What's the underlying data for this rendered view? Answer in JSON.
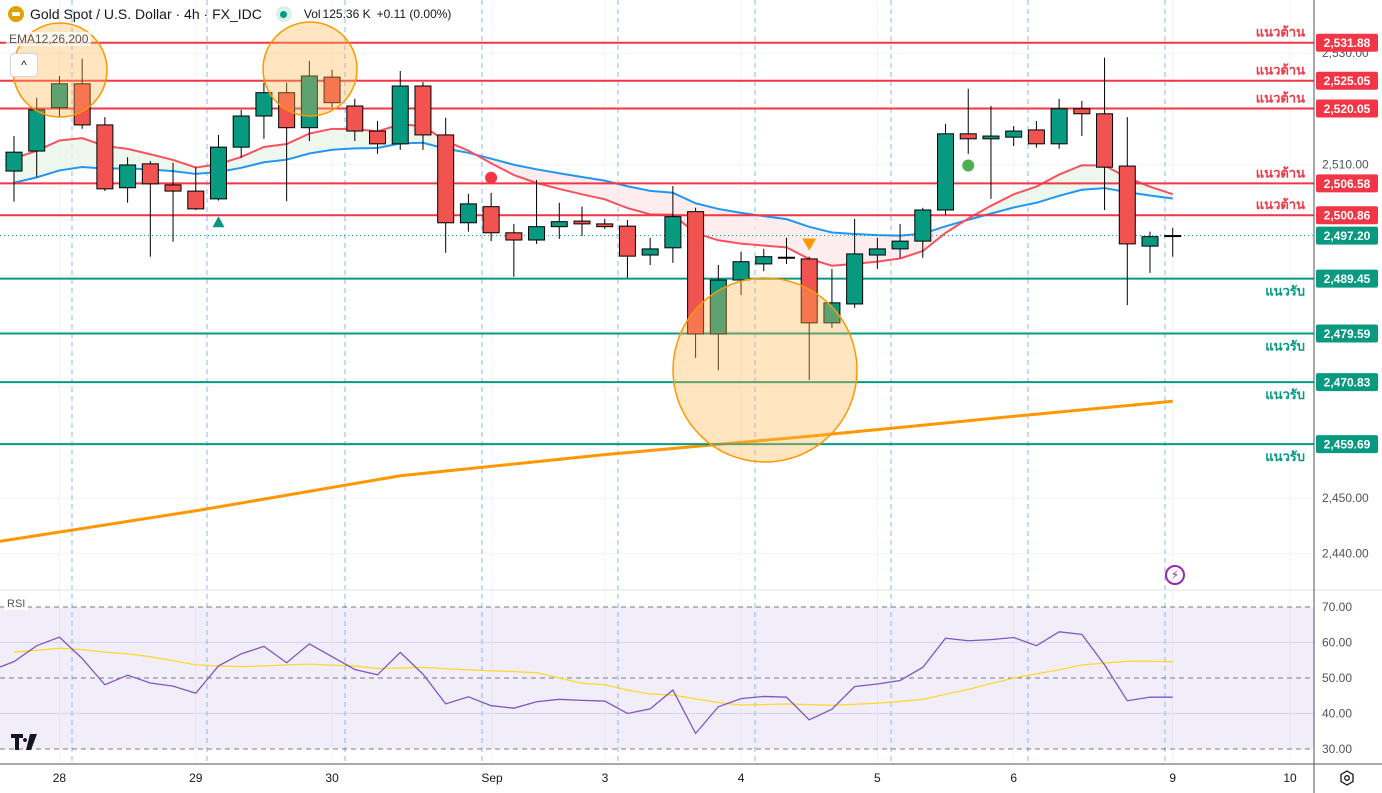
{
  "header": {
    "symbol": "Gold Spot / U.S. Dollar · 4h · FX_IDC",
    "vol_label": "Vol",
    "vol_value": "125.36 K",
    "change": "+0.11 (0.00%)",
    "ema_label": "EMA12,26,200",
    "rsi_label": "RSI",
    "collapse_icon": "^",
    "logo": "17"
  },
  "colors": {
    "up": "#089981",
    "down": "#f05350",
    "resistance": "#f23645",
    "support": "#089981",
    "ema12": "#f7525f",
    "ema26": "#2196f3",
    "ema200": "#ff9800",
    "rsi": "#7e57c2",
    "rsi_ma": "#fdd835",
    "highlight": "#ff9800"
  },
  "chart_data": [
    {
      "type": "candlestick",
      "title": "Gold Spot / U.S. Dollar · 4h · FX_IDC",
      "ylim": [
        2435.5,
        2538
      ],
      "y_ticks": [
        "2,530.00",
        "2,510.00",
        "2,450.00",
        "2,440.00"
      ],
      "y_tick_values": [
        2530,
        2510,
        2450,
        2440
      ],
      "x_ticks": [
        {
          "label": "28",
          "index": 2
        },
        {
          "label": "29",
          "index": 8
        },
        {
          "label": "30",
          "index": 14
        },
        {
          "label": "Sep",
          "index": 21
        },
        {
          "label": "3",
          "index": 26
        },
        {
          "label": "4",
          "index": 32
        },
        {
          "label": "5",
          "index": 38
        },
        {
          "label": "6",
          "index": 44
        },
        {
          "label": "9",
          "index": 51
        },
        {
          "label": "10",
          "index": 56
        }
      ],
      "ohlc": [
        [
          2508.8,
          2515.1,
          2503.3,
          2512.2
        ],
        [
          2512.4,
          2522.0,
          2507.7,
          2519.8
        ],
        [
          2520.2,
          2525.9,
          2518.4,
          2524.5
        ],
        [
          2524.5,
          2529.0,
          2516.4,
          2517.1
        ],
        [
          2517.1,
          2518.5,
          2505.2,
          2505.6
        ],
        [
          2505.8,
          2511.3,
          2503.1,
          2509.9
        ],
        [
          2510.1,
          2510.6,
          2493.4,
          2506.5
        ],
        [
          2506.3,
          2510.3,
          2496.1,
          2505.2
        ],
        [
          2505.2,
          2509.5,
          2501.8,
          2502.0
        ],
        [
          2503.8,
          2515.3,
          2503.5,
          2513.1
        ],
        [
          2513.1,
          2519.8,
          2511.2,
          2518.7
        ],
        [
          2518.7,
          2524.7,
          2514.6,
          2522.9
        ],
        [
          2522.9,
          2524.7,
          2503.4,
          2516.6
        ],
        [
          2516.6,
          2528.6,
          2514.2,
          2525.9
        ],
        [
          2525.7,
          2527.0,
          2520.3,
          2521.1
        ],
        [
          2520.5,
          2521.8,
          2514.2,
          2516.0
        ],
        [
          2516.0,
          2517.8,
          2511.9,
          2513.7
        ],
        [
          2513.7,
          2526.8,
          2512.6,
          2524.1
        ],
        [
          2524.1,
          2524.8,
          2512.6,
          2515.3
        ],
        [
          2515.3,
          2518.4,
          2494.1,
          2499.5
        ],
        [
          2499.5,
          2504.7,
          2497.9,
          2502.9
        ],
        [
          2502.4,
          2504.9,
          2496.2,
          2497.7
        ],
        [
          2497.7,
          2499.3,
          2489.8,
          2496.4
        ],
        [
          2496.4,
          2507.2,
          2495.7,
          2498.8
        ],
        [
          2498.8,
          2503.1,
          2496.6,
          2499.7
        ],
        [
          2499.8,
          2502.4,
          2497.1,
          2499.3
        ],
        [
          2499.3,
          2500.2,
          2498.4,
          2498.8
        ],
        [
          2498.9,
          2500.0,
          2489.6,
          2493.5
        ],
        [
          2493.7,
          2496.8,
          2491.9,
          2494.8
        ],
        [
          2495.0,
          2506.1,
          2492.3,
          2500.6
        ],
        [
          2501.5,
          2502.2,
          2475.2,
          2479.5
        ],
        [
          2479.5,
          2491.9,
          2473.0,
          2489.2
        ],
        [
          2489.2,
          2494.3,
          2486.5,
          2492.5
        ],
        [
          2492.1,
          2494.8,
          2490.8,
          2493.4
        ],
        [
          2493.2,
          2496.8,
          2492.1,
          2493.3
        ],
        [
          2493.0,
          2493.4,
          2471.2,
          2481.5
        ],
        [
          2481.5,
          2491.2,
          2480.6,
          2485.1
        ],
        [
          2484.9,
          2500.2,
          2484.2,
          2493.9
        ],
        [
          2493.7,
          2496.8,
          2491.2,
          2494.8
        ],
        [
          2494.8,
          2499.3,
          2493.2,
          2496.2
        ],
        [
          2496.2,
          2502.2,
          2493.2,
          2501.8
        ],
        [
          2501.8,
          2517.3,
          2500.9,
          2515.5
        ],
        [
          2515.5,
          2523.6,
          2511.9,
          2514.6
        ],
        [
          2514.6,
          2520.5,
          2503.8,
          2515.1
        ],
        [
          2514.9,
          2516.9,
          2513.3,
          2516.0
        ],
        [
          2516.2,
          2517.8,
          2513.0,
          2513.7
        ],
        [
          2513.7,
          2521.8,
          2512.8,
          2520.0
        ],
        [
          2520.0,
          2521.4,
          2515.1,
          2519.1
        ],
        [
          2519.1,
          2529.2,
          2501.8,
          2509.5
        ],
        [
          2509.7,
          2518.5,
          2484.7,
          2495.7
        ],
        [
          2495.3,
          2497.9,
          2490.5,
          2497.0
        ],
        [
          2497.1,
          2498.6,
          2493.4,
          2497.2
        ]
      ],
      "ema": {
        "periods": [
          12,
          26,
          200
        ],
        "ema12_initial": 2511.1,
        "ema26_initial": 2506.7,
        "ema200_points": [
          [
            0,
            2442.6
          ],
          [
            8,
            2447.7
          ],
          [
            17,
            2454.0
          ],
          [
            26,
            2457.8
          ],
          [
            35,
            2461.1
          ],
          [
            43,
            2464.3
          ],
          [
            51,
            2467.4
          ]
        ]
      },
      "current_price": {
        "value": 2497.2,
        "label": "2,497.20"
      },
      "levels": [
        {
          "kind": "resistance",
          "value": 2531.88,
          "price_label": "2,531.88",
          "text": "แนวต้าน"
        },
        {
          "kind": "resistance",
          "value": 2525.05,
          "price_label": "2,525.05",
          "text": "แนวต้าน"
        },
        {
          "kind": "resistance",
          "value": 2520.05,
          "price_label": "2,520.05",
          "text": "แนวต้าน"
        },
        {
          "kind": "resistance",
          "value": 2506.58,
          "price_label": "2,506.58",
          "text": "แนวต้าน"
        },
        {
          "kind": "resistance",
          "value": 2500.86,
          "price_label": "2,500.86",
          "text": "แนวต้าน"
        },
        {
          "kind": "support",
          "value": 2489.45,
          "price_label": "2,489.45",
          "text": "แนวรับ"
        },
        {
          "kind": "support",
          "value": 2479.59,
          "price_label": "2,479.59",
          "text": "แนวรับ"
        },
        {
          "kind": "support",
          "value": 2470.83,
          "price_label": "2,470.83",
          "text": "แนวรับ"
        },
        {
          "kind": "support",
          "value": 2459.69,
          "price_label": "2,459.69",
          "text": "แนวรับ"
        }
      ],
      "signals": [
        {
          "index": 9,
          "type": "triangle-up",
          "color": "#089981",
          "price": 2499.6
        },
        {
          "index": 21,
          "type": "dot",
          "color": "#f23645",
          "price": 2507.6
        },
        {
          "index": 35,
          "type": "triangle-down",
          "color": "#ff9800",
          "price": 2495.6
        },
        {
          "index": 42,
          "type": "dot",
          "color": "#4caf50",
          "price": 2509.8
        }
      ]
    },
    {
      "type": "line",
      "title": "RSI",
      "ylim": [
        25,
        72
      ],
      "y_ticks": [
        "70.00",
        "60.00",
        "50.00",
        "40.00",
        "30.00"
      ],
      "y_tick_values": [
        70,
        60,
        50,
        40,
        30
      ],
      "bands": [
        30,
        50,
        70
      ],
      "series": [
        {
          "name": "RSI",
          "values": [
            54.6,
            59.1,
            61.5,
            55.5,
            48.1,
            50.8,
            48.6,
            47.7,
            45.7,
            53.4,
            56.8,
            58.9,
            54.3,
            59.6,
            56.0,
            52.4,
            50.9,
            57.2,
            51.1,
            42.7,
            44.7,
            42.2,
            41.5,
            43.3,
            44.0,
            43.7,
            43.5,
            40.0,
            41.3,
            46.6,
            34.4,
            41.9,
            44.2,
            44.8,
            44.6,
            38.2,
            41.2,
            47.6,
            48.3,
            49.3,
            53.0,
            61.2,
            60.5,
            60.8,
            61.4,
            59.1,
            63.0,
            62.3,
            53.7,
            43.6,
            44.6,
            44.6
          ]
        },
        {
          "name": "RSI-based MA",
          "values": [
            57.3,
            57.8,
            58.4,
            58.0,
            57.3,
            56.8,
            56.0,
            54.9,
            53.7,
            53.4,
            53.2,
            53.4,
            53.7,
            53.9,
            53.6,
            53.4,
            52.7,
            52.8,
            53.0,
            52.6,
            52.3,
            52.0,
            51.8,
            51.5,
            50.0,
            48.5,
            48.1,
            46.6,
            45.5,
            45.2,
            44.1,
            43.1,
            42.4,
            42.5,
            42.7,
            42.5,
            42.3,
            42.6,
            42.9,
            43.4,
            44.0,
            45.4,
            46.8,
            48.4,
            50.0,
            51.2,
            52.3,
            53.7,
            54.2,
            54.7,
            54.7,
            54.6
          ]
        }
      ]
    }
  ]
}
